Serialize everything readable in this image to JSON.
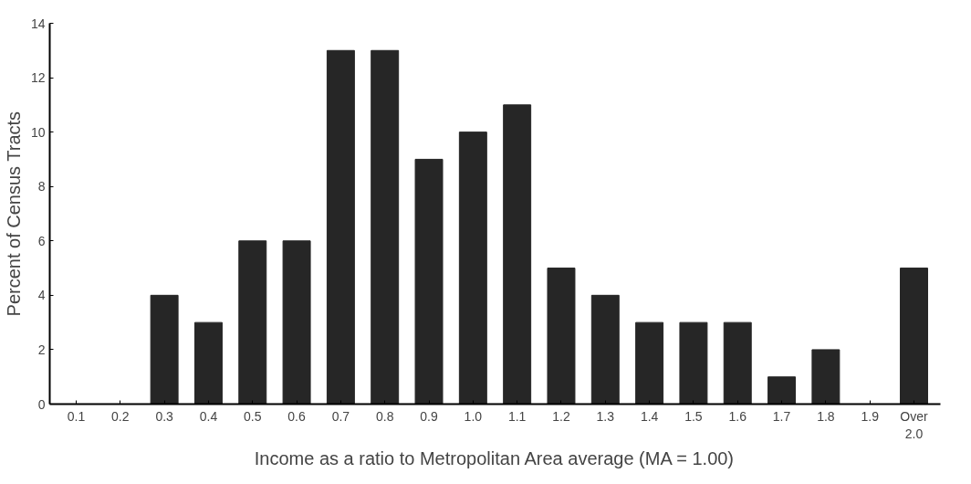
{
  "chart_data": {
    "type": "bar",
    "xlabel": "Income as a ratio to Metropolitan Area average (MA = 1.00)",
    "ylabel": "Percent of Census Tracts",
    "categories": [
      "0.1",
      "0.2",
      "0.3",
      "0.4",
      "0.5",
      "0.6",
      "0.7",
      "0.8",
      "0.9",
      "1.0",
      "1.1",
      "1.2",
      "1.3",
      "1.4",
      "1.5",
      "1.6",
      "1.7",
      "1.8",
      "1.9",
      "Over 2.0"
    ],
    "values": [
      0,
      0,
      4,
      3,
      6,
      6,
      13,
      13,
      9,
      10,
      11,
      5,
      4,
      3,
      3,
      3,
      1,
      2,
      0,
      5
    ],
    "color": "#262626",
    "ylim": [
      0,
      14
    ],
    "yticks": [
      0,
      2,
      4,
      6,
      8,
      10,
      12,
      14
    ],
    "grid": false
  }
}
